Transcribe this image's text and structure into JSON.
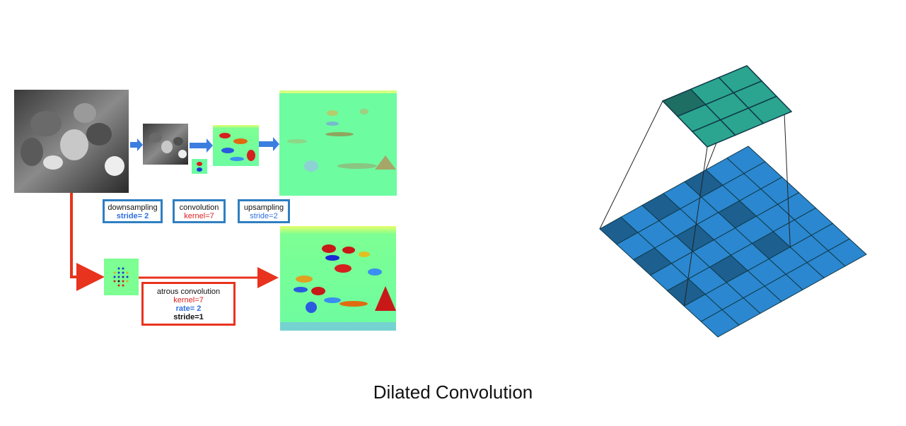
{
  "boxes": {
    "downsampling": {
      "title": "downsampling",
      "param": "stride= 2"
    },
    "convolution": {
      "title": "convolution",
      "param": "kernel=7"
    },
    "upsampling": {
      "title": "upsampling",
      "param": "stride=2"
    },
    "atrous": {
      "title": "atrous convolution",
      "kernel": "kernel=7",
      "rate": "rate= 2",
      "stride": "stride=1"
    }
  },
  "caption": "Dilated Convolution",
  "colors": {
    "arrow_blue": "#3b7ee0",
    "arrow_red": "#e8331e",
    "box_blue": "#2f7fc1",
    "box_red": "#e8331e",
    "text_red": "#e02020",
    "text_blue": "#2f6fe0",
    "grid_blue": "#2b87cf",
    "grid_dark": "#1d5f8f",
    "grid_green": "#2ba58f",
    "grid_green_dark": "#1f6e63",
    "grid_line": "#0f3a4a"
  }
}
